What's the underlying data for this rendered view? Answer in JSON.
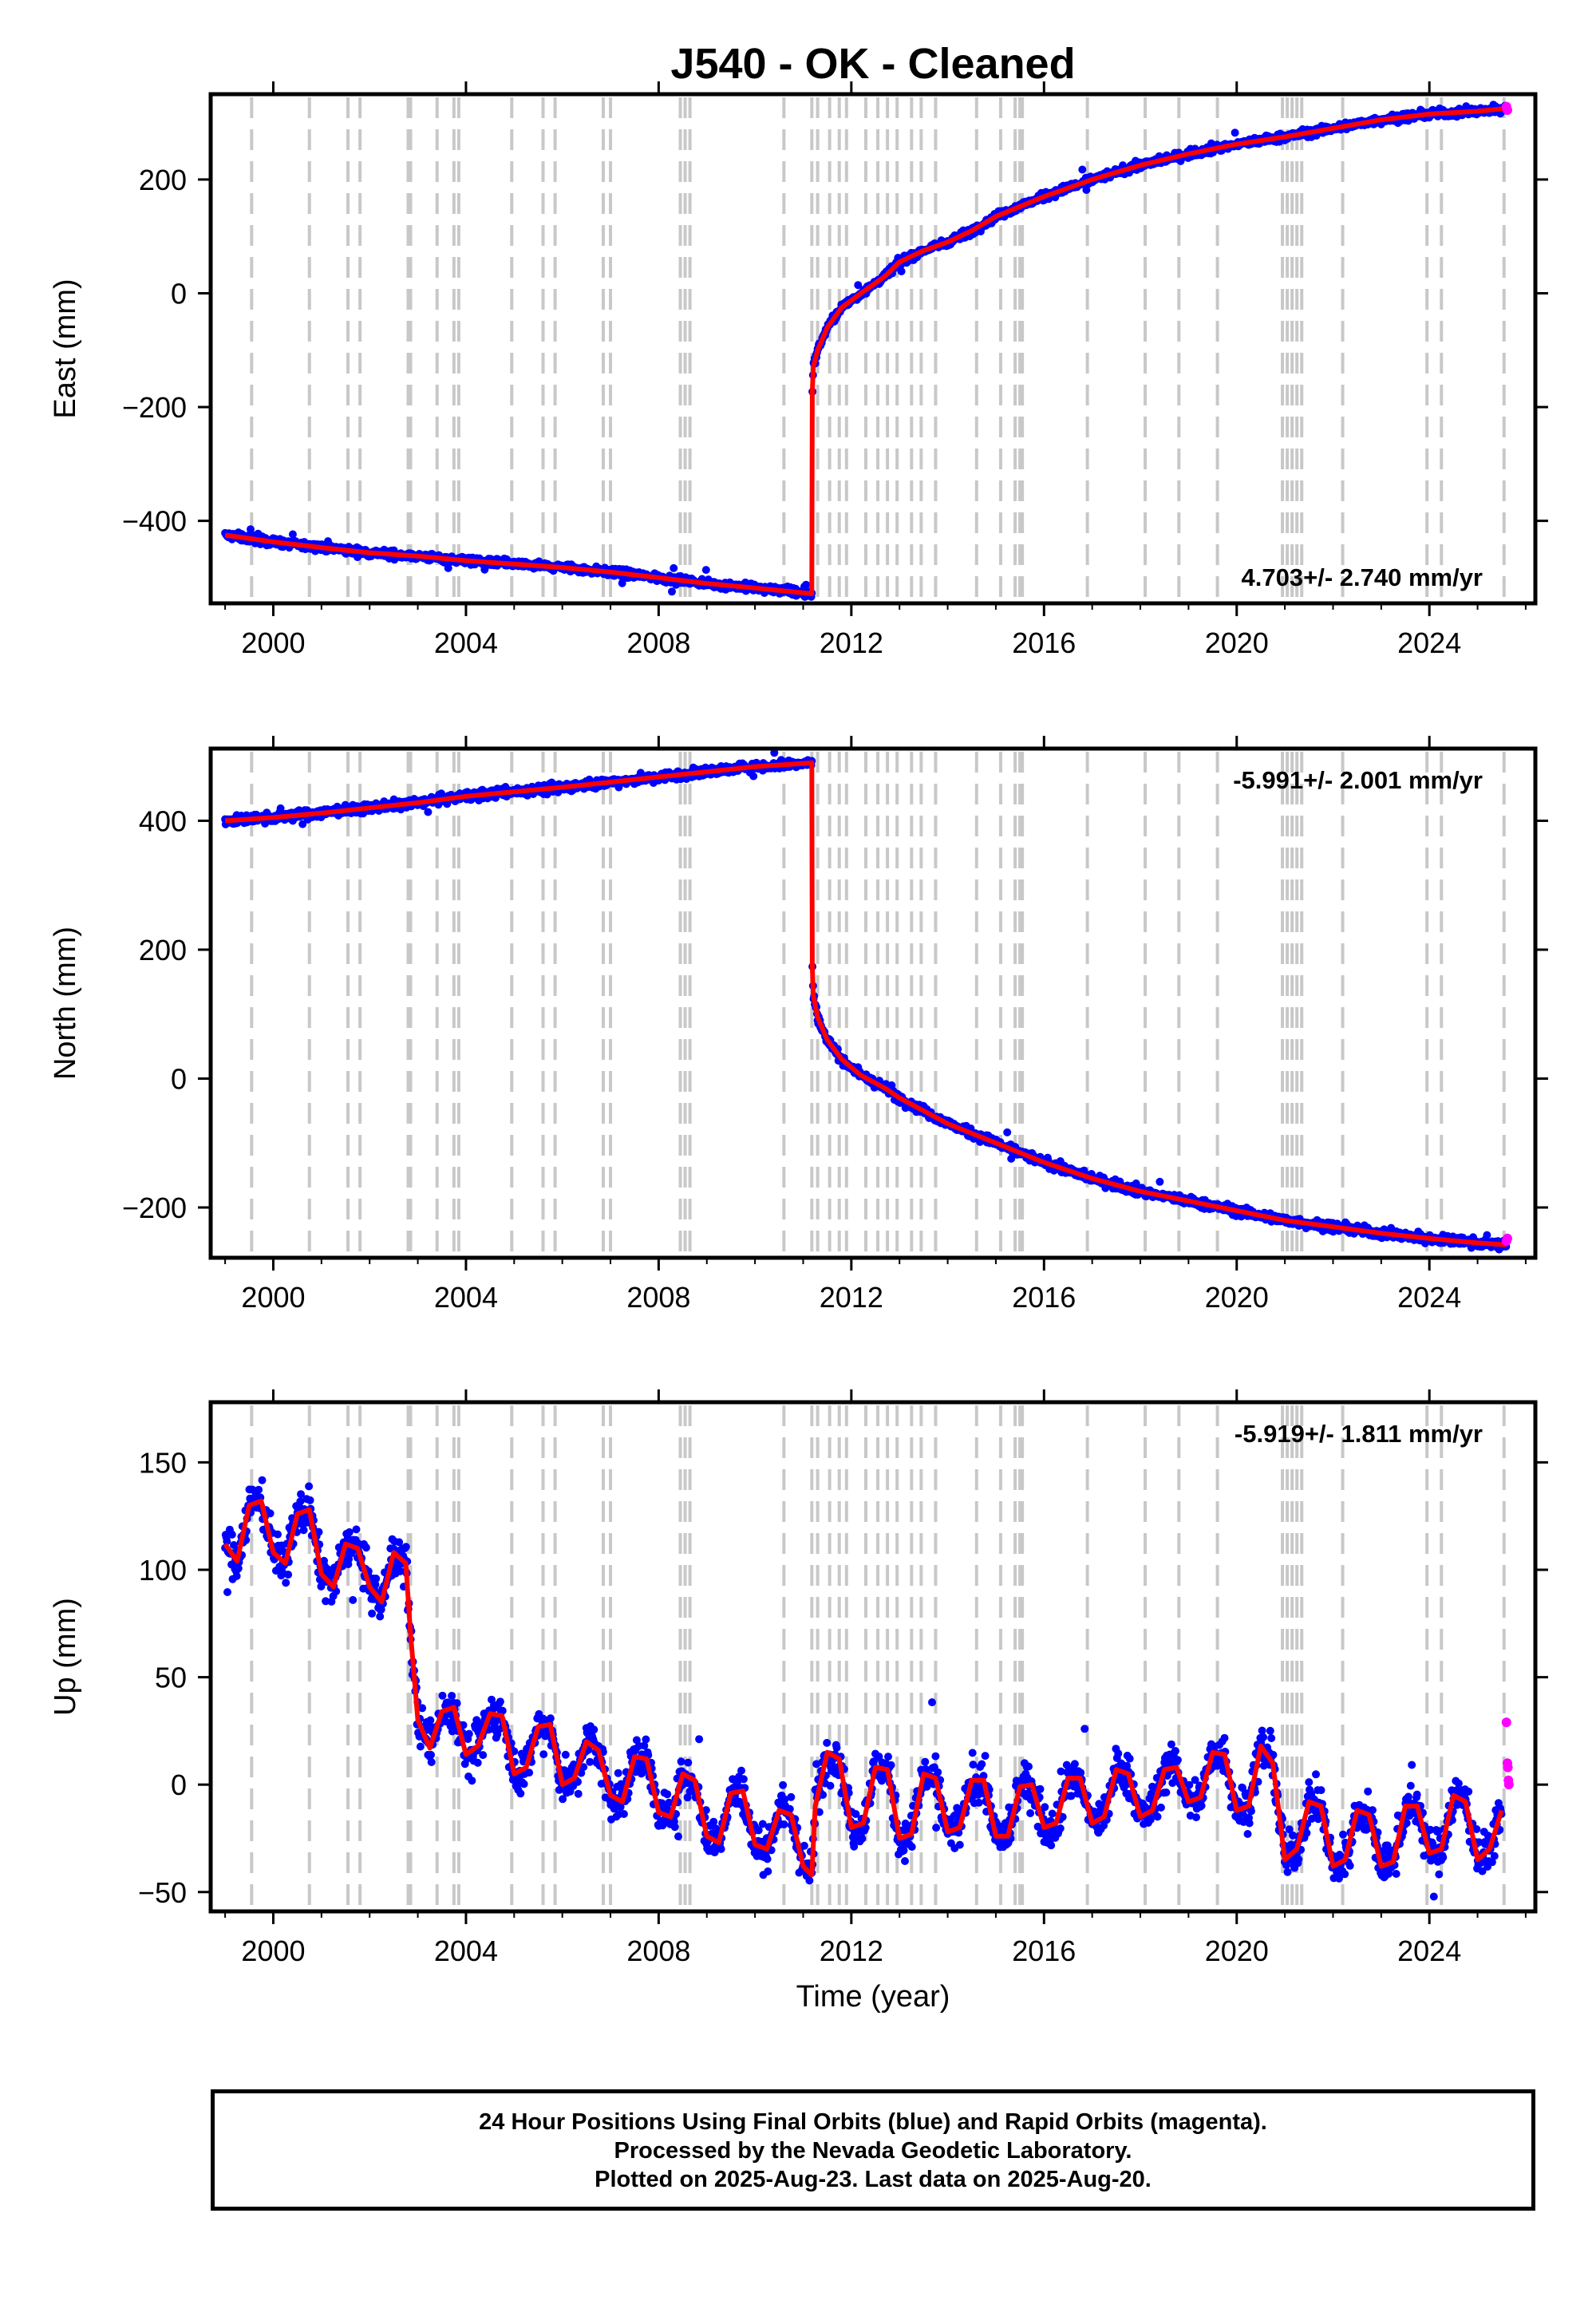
{
  "title": "J540  - OK - Cleaned",
  "xlabel": "Time (year)",
  "notes": [
    "24 Hour Positions Using Final Orbits (blue) and Rapid Orbits (magenta).",
    "Processed by the Nevada Geodetic Laboratory.",
    "Plotted on 2025-Aug-23. Last data on 2025-Aug-20."
  ],
  "colors": {
    "final": "#0000ff",
    "rapid": "#ff00ff",
    "model": "#ff0000",
    "steps": "#c8c8c8",
    "frame": "#000000"
  },
  "chart_data": [
    {
      "type": "scatter",
      "ylabel": "East (mm)",
      "rate_label": "4.703+/- 2.740 mm/yr",
      "rate_position": "bottom-right",
      "xlim": [
        1998.7,
        2026.2
      ],
      "ylim": [
        -545,
        350
      ],
      "xticks": [
        2000,
        2004,
        2008,
        2012,
        2016,
        2020,
        2024
      ],
      "yticks": [
        -400,
        -200,
        0,
        200
      ],
      "ytick_labels": [
        "−400",
        "−200",
        "0",
        "200"
      ],
      "model": {
        "x": [
          1999.0,
          2000.0,
          2001.0,
          2002.0,
          2003.0,
          2004.0,
          2005.0,
          2006.0,
          2007.0,
          2008.0,
          2009.0,
          2010.0,
          2011.18,
          2011.19,
          2011.21,
          2011.3,
          2011.5,
          2011.8,
          2012.2,
          2012.7,
          2013.0,
          2013.5,
          2014.0,
          2014.5,
          2015.0,
          2016.0,
          2017.0,
          2018.0,
          2019.0,
          2020.0,
          2021.0,
          2022.0,
          2023.0,
          2024.0,
          2025.0,
          2025.6
        ],
        "y": [
          -425,
          -437,
          -447,
          -456,
          -462,
          -470,
          -476,
          -482,
          -490,
          -500,
          -510,
          -518,
          -528,
          -175,
          -130,
          -100,
          -60,
          -25,
          0,
          30,
          55,
          75,
          90,
          110,
          135,
          170,
          200,
          225,
          245,
          262,
          275,
          290,
          305,
          315,
          320,
          325
        ]
      },
      "rapid": {
        "x": [
          2025.6,
          2025.62
        ],
        "y": [
          328,
          322
        ]
      },
      "steps": [
        1999.55,
        2000.75,
        2001.55,
        2001.8,
        2002.8,
        2002.85,
        2003.4,
        2003.75,
        2003.85,
        2004.95,
        2005.6,
        2005.85,
        2006.85,
        2007.0,
        2008.45,
        2008.55,
        2008.65,
        2010.6,
        2011.18,
        2011.3,
        2011.55,
        2011.75,
        2011.9,
        2012.3,
        2012.55,
        2012.75,
        2012.95,
        2013.25,
        2013.45,
        2013.75,
        2014.6,
        2015.1,
        2015.4,
        2015.5,
        2015.55,
        2016.9,
        2018.1,
        2018.8,
        2019.6,
        2020.95,
        2021.05,
        2021.15,
        2021.25,
        2021.35,
        2022.2,
        2023.95,
        2024.25,
        2025.55
      ]
    },
    {
      "type": "scatter",
      "ylabel": "North (mm)",
      "rate_label": "-5.991+/- 2.001 mm/yr",
      "rate_position": "top-right",
      "xlim": [
        1998.7,
        2026.2
      ],
      "ylim": [
        -278,
        512
      ],
      "xticks": [
        2000,
        2004,
        2008,
        2012,
        2016,
        2020,
        2024
      ],
      "yticks": [
        -200,
        0,
        200,
        400
      ],
      "ytick_labels": [
        "−200",
        "0",
        "200",
        "400"
      ],
      "model": {
        "x": [
          1999.0,
          2000.0,
          2001.0,
          2002.0,
          2003.0,
          2004.0,
          2005.0,
          2006.0,
          2007.0,
          2008.0,
          2009.0,
          2010.0,
          2011.18,
          2011.19,
          2011.21,
          2011.3,
          2011.5,
          2011.8,
          2012.2,
          2012.7,
          2013.0,
          2013.5,
          2014.0,
          2014.5,
          2015.0,
          2016.0,
          2017.0,
          2018.0,
          2019.0,
          2020.0,
          2021.0,
          2022.0,
          2023.0,
          2024.0,
          2025.0,
          2025.6
        ],
        "y": [
          400,
          405,
          412,
          420,
          428,
          438,
          445,
          452,
          460,
          468,
          476,
          484,
          490,
          175,
          130,
          95,
          60,
          30,
          5,
          -15,
          -30,
          -50,
          -70,
          -85,
          -100,
          -130,
          -155,
          -175,
          -190,
          -205,
          -220,
          -230,
          -240,
          -248,
          -255,
          -258
        ]
      },
      "rapid": {
        "x": [
          2025.6,
          2025.62
        ],
        "y": [
          -252,
          -248
        ]
      },
      "steps": [
        1999.55,
        2000.75,
        2001.55,
        2001.8,
        2002.8,
        2002.85,
        2003.4,
        2003.75,
        2003.85,
        2004.95,
        2005.6,
        2005.85,
        2006.85,
        2007.0,
        2008.45,
        2008.55,
        2008.65,
        2010.6,
        2011.18,
        2011.3,
        2011.55,
        2011.75,
        2011.9,
        2012.3,
        2012.55,
        2012.75,
        2012.95,
        2013.25,
        2013.45,
        2013.75,
        2014.6,
        2015.1,
        2015.4,
        2015.5,
        2015.55,
        2016.9,
        2018.1,
        2018.8,
        2019.6,
        2020.95,
        2021.05,
        2021.15,
        2021.25,
        2021.35,
        2022.2,
        2023.95,
        2024.25,
        2025.55
      ]
    },
    {
      "type": "scatter",
      "ylabel": "Up (mm)",
      "rate_label": "-5.919+/- 1.811 mm/yr",
      "rate_position": "top-right",
      "xlim": [
        1998.7,
        2026.2
      ],
      "ylim": [
        -59,
        178
      ],
      "xticks": [
        2000,
        2004,
        2008,
        2012,
        2016,
        2020,
        2024
      ],
      "yticks": [
        -50,
        0,
        50,
        100,
        150
      ],
      "ytick_labels": [
        "−50",
        "0",
        "50",
        "100",
        "150"
      ],
      "model": {
        "x": [
          1999.0,
          1999.25,
          1999.5,
          1999.75,
          2000.0,
          2000.25,
          2000.5,
          2000.75,
          2001.0,
          2001.25,
          2001.5,
          2001.75,
          2002.0,
          2002.25,
          2002.5,
          2002.75,
          2002.85,
          2002.95,
          2003.0,
          2003.25,
          2003.5,
          2003.75,
          2004.0,
          2004.25,
          2004.5,
          2004.75,
          2005.0,
          2005.25,
          2005.5,
          2005.75,
          2006.0,
          2006.25,
          2006.5,
          2006.75,
          2007.0,
          2007.25,
          2007.5,
          2007.75,
          2008.0,
          2008.25,
          2008.5,
          2008.75,
          2009.0,
          2009.25,
          2009.5,
          2009.75,
          2010.0,
          2010.25,
          2010.5,
          2010.75,
          2011.0,
          2011.18,
          2011.25,
          2011.5,
          2011.75,
          2012.0,
          2012.25,
          2012.5,
          2012.75,
          2013.0,
          2013.25,
          2013.5,
          2013.75,
          2014.0,
          2014.25,
          2014.5,
          2014.75,
          2015.0,
          2015.25,
          2015.5,
          2015.75,
          2016.0,
          2016.25,
          2016.5,
          2016.75,
          2017.0,
          2017.25,
          2017.5,
          2017.75,
          2018.0,
          2018.25,
          2018.5,
          2018.75,
          2019.0,
          2019.25,
          2019.5,
          2019.75,
          2020.0,
          2020.25,
          2020.5,
          2020.75,
          2021.0,
          2021.25,
          2021.5,
          2021.75,
          2022.0,
          2022.25,
          2022.5,
          2022.75,
          2023.0,
          2023.25,
          2023.5,
          2023.75,
          2024.0,
          2024.25,
          2024.5,
          2024.75,
          2025.0,
          2025.25,
          2025.5
        ],
        "y": [
          112,
          104,
          130,
          132,
          108,
          103,
          126,
          128,
          98,
          92,
          112,
          110,
          92,
          85,
          108,
          103,
          70,
          44,
          30,
          17,
          34,
          36,
          14,
          18,
          33,
          32,
          5,
          8,
          27,
          28,
          0,
          3,
          20,
          16,
          -5,
          -8,
          13,
          12,
          -13,
          -15,
          5,
          2,
          -24,
          -27,
          -4,
          -3,
          -28,
          -30,
          -12,
          -14,
          -38,
          -42,
          -10,
          15,
          12,
          -20,
          -18,
          8,
          7,
          -25,
          -23,
          5,
          3,
          -22,
          -20,
          2,
          2,
          -24,
          -24,
          -1,
          0,
          -20,
          -18,
          3,
          3,
          -18,
          -15,
          7,
          5,
          -15,
          -12,
          7,
          8,
          -8,
          -6,
          15,
          14,
          -12,
          -10,
          18,
          10,
          -35,
          -30,
          -8,
          -10,
          -38,
          -35,
          -12,
          -14,
          -38,
          -36,
          -10,
          -10,
          -32,
          -30,
          -5,
          -8,
          -35,
          -30,
          -12
        ]
      },
      "rapid": {
        "x": [
          2025.6,
          2025.62,
          2025.63,
          2025.64,
          2025.65
        ],
        "y": [
          29,
          10,
          8,
          2,
          0
        ]
      },
      "steps": [
        1999.55,
        2000.75,
        2001.55,
        2001.8,
        2002.8,
        2002.85,
        2003.4,
        2003.75,
        2003.85,
        2004.95,
        2005.6,
        2005.85,
        2006.85,
        2007.0,
        2008.45,
        2008.55,
        2008.65,
        2010.6,
        2011.18,
        2011.3,
        2011.55,
        2011.75,
        2011.9,
        2012.3,
        2012.55,
        2012.75,
        2012.95,
        2013.25,
        2013.45,
        2013.75,
        2014.6,
        2015.1,
        2015.4,
        2015.5,
        2015.55,
        2016.9,
        2018.1,
        2018.8,
        2019.6,
        2020.95,
        2021.05,
        2021.15,
        2021.25,
        2021.35,
        2022.2,
        2023.95,
        2024.25,
        2025.55
      ]
    }
  ]
}
